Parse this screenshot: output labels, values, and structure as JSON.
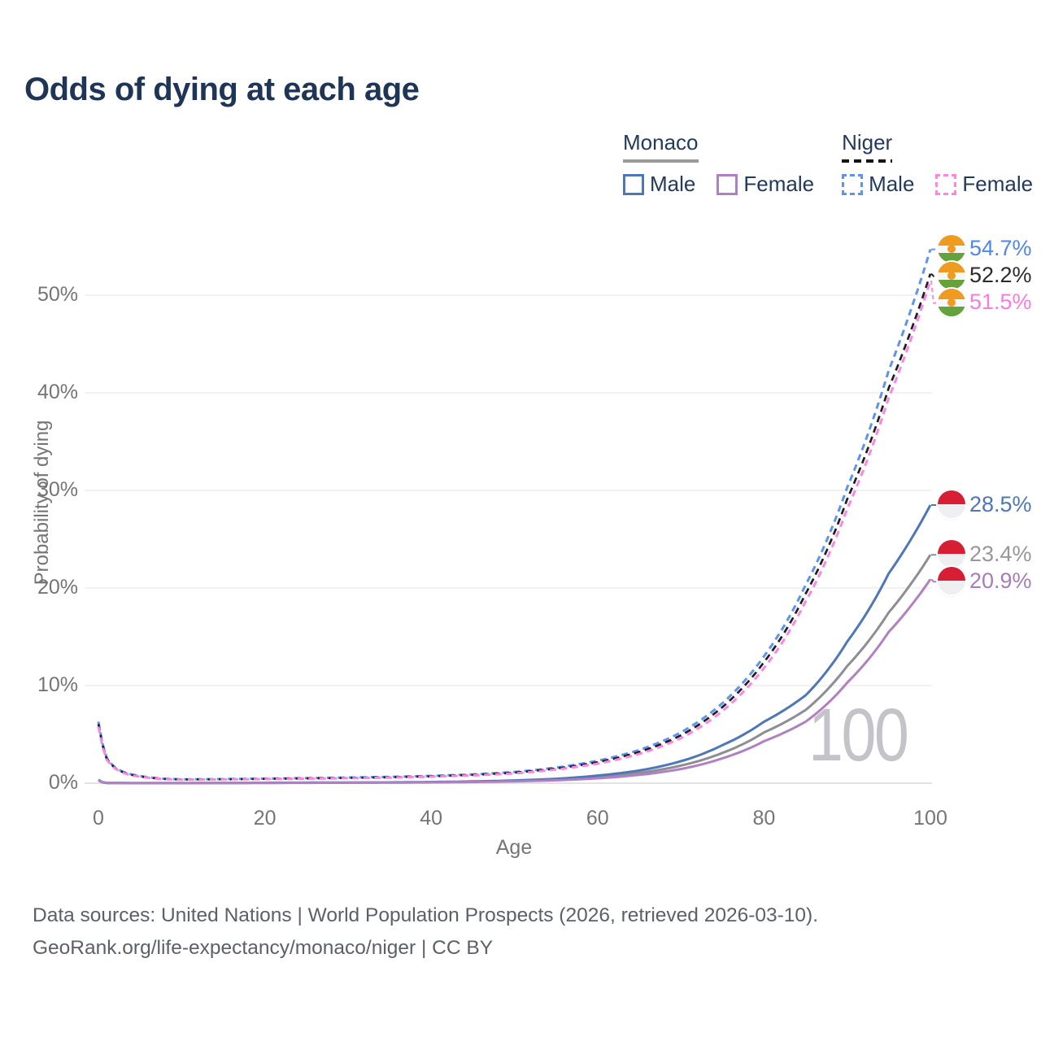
{
  "title": "Odds of dying at each age",
  "watermark": "100",
  "legend": {
    "monaco": {
      "label": "Monaco",
      "male": "Male",
      "female": "Female"
    },
    "niger": {
      "label": "Niger",
      "male": "Male",
      "female": "Female"
    }
  },
  "footer": {
    "line1": "Data sources: United Nations | World Population Prospects (2026, retrieved 2026-03-10).",
    "line2": "GeoRank.org/life-expectancy/monaco/niger | CC BY"
  },
  "colors": {
    "title": "#1e3555",
    "axis_text": "#757575",
    "gridline": "#ededf1",
    "baseline": "#d8d8dd",
    "monaco_male": "#4d77b6",
    "monaco_female": "#b180c2",
    "monaco_both": "#8d8d93",
    "niger_male": "#5e93f0",
    "niger_female": "#fb86e2",
    "niger_both": "#1f1f1f"
  },
  "chart_data": {
    "type": "line",
    "title": "Odds of dying at each age",
    "xlabel": "Age",
    "ylabel": "Probability of dying",
    "xlim": [
      0,
      100
    ],
    "ylim": [
      0,
      57
    ],
    "grid": "horizontal",
    "legend_position": "top-right",
    "x_ticks": [
      0,
      20,
      40,
      60,
      80,
      100
    ],
    "y_ticks": [
      {
        "value": 0,
        "label": "0%"
      },
      {
        "value": 10,
        "label": "10%"
      },
      {
        "value": 20,
        "label": "20%"
      },
      {
        "value": 30,
        "label": "30%"
      },
      {
        "value": 40,
        "label": "40%"
      },
      {
        "value": 50,
        "label": "50%"
      }
    ],
    "series": [
      {
        "name": "Niger Male",
        "country": "Niger",
        "sex": "male",
        "flag": "niger",
        "dashed": true,
        "color": "#5e93f0",
        "label_color": "#4e86ea",
        "end_label": "54.7%",
        "end_value": 54.7,
        "ages": [
          0,
          1,
          2,
          3,
          4,
          6,
          8,
          10,
          15,
          20,
          25,
          30,
          35,
          40,
          45,
          50,
          55,
          60,
          65,
          70,
          75,
          80,
          85,
          90,
          95,
          100
        ],
        "values": [
          6.3,
          2.6,
          1.6,
          1.15,
          0.9,
          0.6,
          0.45,
          0.4,
          0.42,
          0.47,
          0.52,
          0.58,
          0.65,
          0.75,
          0.9,
          1.15,
          1.6,
          2.3,
          3.4,
          5.2,
          8.2,
          13.0,
          20.3,
          30.3,
          42.3,
          54.7
        ]
      },
      {
        "name": "Niger Both sexes",
        "country": "Niger",
        "sex": "both",
        "flag": "niger",
        "dashed": true,
        "color": "#1f1f1f",
        "label_color": "#2b2b2b",
        "end_label": "52.2%",
        "end_value": 52.2,
        "ages": [
          0,
          1,
          2,
          3,
          4,
          6,
          8,
          10,
          15,
          20,
          25,
          30,
          35,
          40,
          45,
          50,
          55,
          60,
          65,
          70,
          75,
          80,
          85,
          90,
          95,
          100
        ],
        "values": [
          6.05,
          2.5,
          1.55,
          1.1,
          0.85,
          0.57,
          0.43,
          0.38,
          0.4,
          0.44,
          0.49,
          0.54,
          0.61,
          0.71,
          0.85,
          1.08,
          1.5,
          2.15,
          3.2,
          4.9,
          7.8,
          12.4,
          19.4,
          29.1,
          40.5,
          52.2
        ]
      },
      {
        "name": "Niger Female",
        "country": "Niger",
        "sex": "female",
        "flag": "niger",
        "dashed": true,
        "color": "#fb86e2",
        "label_color": "#fb7ae0",
        "end_label": "51.5%",
        "end_value": 51.5,
        "ages": [
          0,
          1,
          2,
          3,
          4,
          6,
          8,
          10,
          15,
          20,
          25,
          30,
          35,
          40,
          45,
          50,
          55,
          60,
          65,
          70,
          75,
          80,
          85,
          90,
          95,
          100
        ],
        "values": [
          5.8,
          2.4,
          1.5,
          1.05,
          0.8,
          0.55,
          0.4,
          0.36,
          0.38,
          0.42,
          0.46,
          0.51,
          0.57,
          0.67,
          0.8,
          1.0,
          1.4,
          2.0,
          3.0,
          4.6,
          7.4,
          11.8,
          18.6,
          28.1,
          39.5,
          51.5
        ]
      },
      {
        "name": "Monaco Male",
        "country": "Monaco",
        "sex": "male",
        "flag": "monaco",
        "dashed": false,
        "color": "#4d77b6",
        "label_color": "#4d77b6",
        "end_label": "28.5%",
        "end_value": 28.5,
        "ages": [
          0,
          1,
          2,
          3,
          4,
          6,
          8,
          10,
          15,
          20,
          25,
          30,
          35,
          40,
          45,
          50,
          55,
          60,
          65,
          70,
          75,
          80,
          85,
          90,
          95,
          100
        ],
        "values": [
          0.35,
          0.03,
          0.02,
          0.015,
          0.012,
          0.01,
          0.01,
          0.01,
          0.025,
          0.045,
          0.055,
          0.065,
          0.085,
          0.12,
          0.18,
          0.28,
          0.45,
          0.78,
          1.3,
          2.25,
          3.9,
          6.3,
          9.0,
          14.5,
          21.5,
          28.5
        ]
      },
      {
        "name": "Monaco Both sexes",
        "country": "Monaco",
        "sex": "both",
        "flag": "monaco",
        "dashed": false,
        "color": "#8d8d93",
        "label_color": "#97979d",
        "end_label": "23.4%",
        "end_value": 23.4,
        "ages": [
          0,
          1,
          2,
          3,
          4,
          6,
          8,
          10,
          15,
          20,
          25,
          30,
          35,
          40,
          45,
          50,
          55,
          60,
          65,
          70,
          75,
          80,
          85,
          90,
          95,
          100
        ],
        "values": [
          0.32,
          0.025,
          0.018,
          0.013,
          0.01,
          0.009,
          0.009,
          0.009,
          0.02,
          0.035,
          0.045,
          0.055,
          0.07,
          0.1,
          0.15,
          0.23,
          0.37,
          0.62,
          1.05,
          1.8,
          3.1,
          5.2,
          7.5,
          12.0,
          17.5,
          23.4
        ]
      },
      {
        "name": "Monaco Female",
        "country": "Monaco",
        "sex": "female",
        "flag": "monaco",
        "dashed": false,
        "color": "#b180c2",
        "label_color": "#a87cba",
        "end_label": "20.9%",
        "end_value": 20.9,
        "ages": [
          0,
          1,
          2,
          3,
          4,
          6,
          8,
          10,
          15,
          20,
          25,
          30,
          35,
          40,
          45,
          50,
          55,
          60,
          65,
          70,
          75,
          80,
          85,
          90,
          95,
          100
        ],
        "values": [
          0.3,
          0.02,
          0.015,
          0.012,
          0.01,
          0.008,
          0.008,
          0.008,
          0.015,
          0.025,
          0.035,
          0.045,
          0.06,
          0.08,
          0.12,
          0.19,
          0.3,
          0.5,
          0.85,
          1.45,
          2.55,
          4.3,
          6.3,
          10.3,
          15.5,
          20.9
        ]
      }
    ]
  }
}
